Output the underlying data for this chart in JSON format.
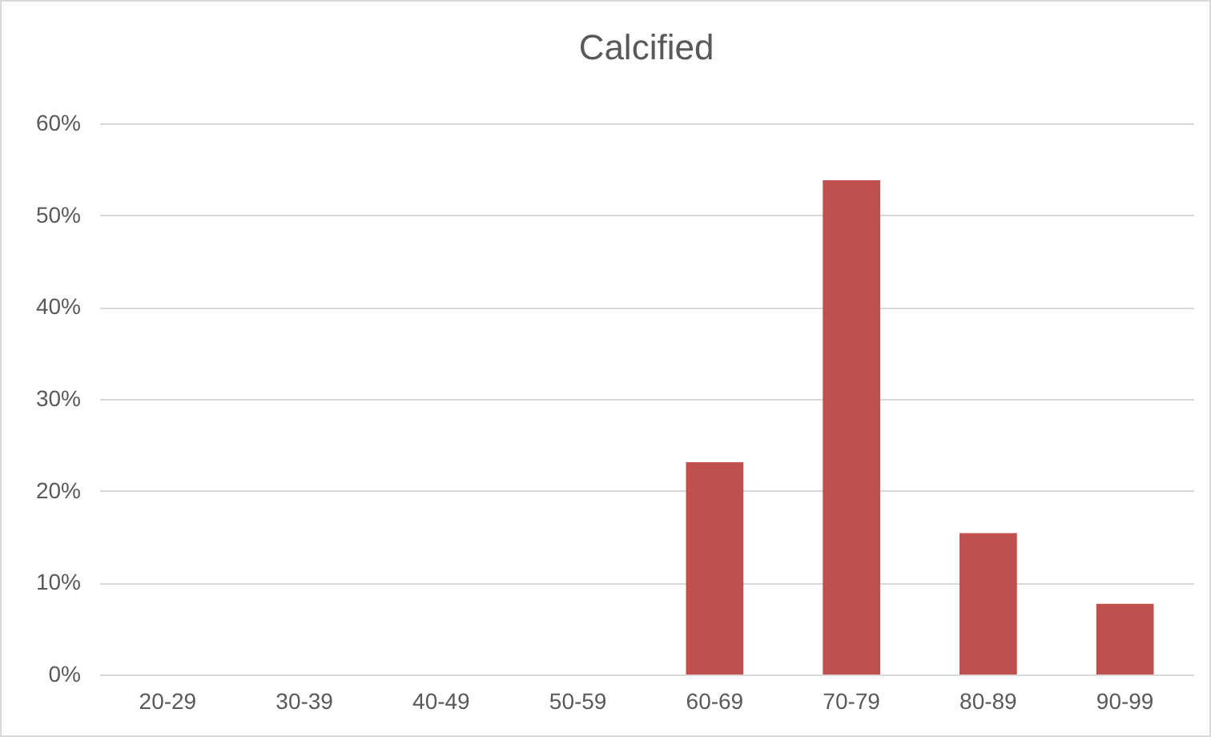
{
  "chart_data": {
    "type": "bar",
    "title": "Calcified",
    "categories": [
      "20-29",
      "30-39",
      "40-49",
      "50-59",
      "60-69",
      "70-79",
      "80-89",
      "90-99"
    ],
    "values": [
      0,
      0,
      0,
      0,
      23.1,
      53.8,
      15.4,
      7.7
    ],
    "color": "#c0504d",
    "ylim": [
      0,
      60
    ],
    "yticks": [
      {
        "value": 0,
        "label": "0%"
      },
      {
        "value": 10,
        "label": "10%"
      },
      {
        "value": 20,
        "label": "20%"
      },
      {
        "value": 30,
        "label": "30%"
      },
      {
        "value": 40,
        "label": "40%"
      },
      {
        "value": 50,
        "label": "50%"
      },
      {
        "value": 60,
        "label": "60%"
      }
    ],
    "grid": "y"
  }
}
